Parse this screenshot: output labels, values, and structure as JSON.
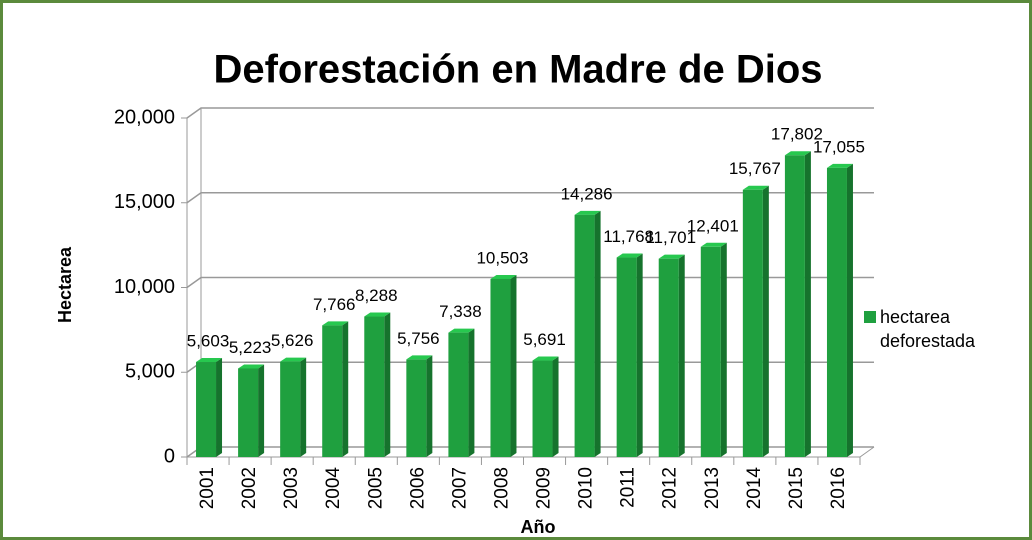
{
  "chart_data": {
    "type": "bar",
    "title": "Deforestación en Madre de Dios",
    "x_label": "Año",
    "y_label": "Hectarea",
    "categories": [
      "2001",
      "2002",
      "2003",
      "2004",
      "2005",
      "2006",
      "2007",
      "2008",
      "2009",
      "2010",
      "2011",
      "2012",
      "2013",
      "2014",
      "2015",
      "2016"
    ],
    "series": [
      {
        "name": "hectarea deforestada",
        "color": "#1fa03f",
        "values": [
          5603,
          5223,
          5626,
          7766,
          8288,
          5756,
          7338,
          10503,
          5691,
          14286,
          11768,
          11701,
          12401,
          15767,
          17802,
          17055
        ],
        "value_labels": [
          "5,603",
          "5,223",
          "5,626",
          "7,766",
          "8,288",
          "5,756",
          "7,338",
          "10,503",
          "5,691",
          "14,286",
          "11,768",
          "11,701",
          "12,401",
          "15,767",
          "17,802",
          "17,055"
        ]
      }
    ],
    "ylim": [
      0,
      20000
    ],
    "yticks": [
      0,
      {
        "value": 5000,
        "label": "5,000"
      },
      {
        "value": 10000,
        "label": "10,000"
      },
      {
        "value": 15000,
        "label": "15,000"
      },
      {
        "value": 20000,
        "label": "20,000"
      }
    ],
    "grid": true,
    "legend": "right"
  }
}
